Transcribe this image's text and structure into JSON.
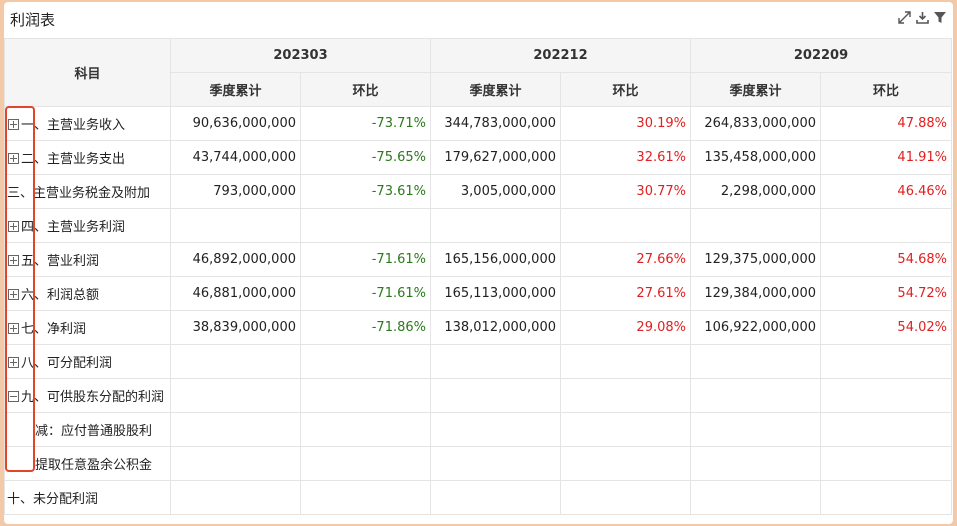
{
  "panel": {
    "title": "利润表",
    "icons": [
      "expand-icon",
      "download-icon",
      "filter-icon"
    ]
  },
  "table": {
    "subject_header": "科目",
    "periods": [
      "202303",
      "202212",
      "202209"
    ],
    "sub_headers": [
      "季度累计",
      "环比"
    ],
    "rows": [
      {
        "label": "一、主营业务收入",
        "toggle": "plus",
        "cells": [
          {
            "value": "90,636,000,000",
            "change": "-73.71%",
            "dir": "neg"
          },
          {
            "value": "344,783,000,000",
            "change": "30.19%",
            "dir": "pos"
          },
          {
            "value": "264,833,000,000",
            "change": "47.88%",
            "dir": "pos"
          }
        ]
      },
      {
        "label": "二、主营业务支出",
        "toggle": "plus",
        "cells": [
          {
            "value": "43,744,000,000",
            "change": "-75.65%",
            "dir": "neg"
          },
          {
            "value": "179,627,000,000",
            "change": "32.61%",
            "dir": "pos"
          },
          {
            "value": "135,458,000,000",
            "change": "41.91%",
            "dir": "pos"
          }
        ]
      },
      {
        "label": "三、主营业务税金及附加",
        "toggle": "none",
        "cells": [
          {
            "value": "793,000,000",
            "change": "-73.61%",
            "dir": "neg"
          },
          {
            "value": "3,005,000,000",
            "change": "30.77%",
            "dir": "pos"
          },
          {
            "value": "2,298,000,000",
            "change": "46.46%",
            "dir": "pos"
          }
        ]
      },
      {
        "label": "四、主营业务利润",
        "toggle": "plus",
        "cells": [
          {
            "value": "",
            "change": "",
            "dir": ""
          },
          {
            "value": "",
            "change": "",
            "dir": ""
          },
          {
            "value": "",
            "change": "",
            "dir": ""
          }
        ]
      },
      {
        "label": "五、营业利润",
        "toggle": "plus",
        "cells": [
          {
            "value": "46,892,000,000",
            "change": "-71.61%",
            "dir": "neg"
          },
          {
            "value": "165,156,000,000",
            "change": "27.66%",
            "dir": "pos"
          },
          {
            "value": "129,375,000,000",
            "change": "54.68%",
            "dir": "pos"
          }
        ]
      },
      {
        "label": "六、利润总额",
        "toggle": "plus",
        "cells": [
          {
            "value": "46,881,000,000",
            "change": "-71.61%",
            "dir": "neg"
          },
          {
            "value": "165,113,000,000",
            "change": "27.61%",
            "dir": "pos"
          },
          {
            "value": "129,384,000,000",
            "change": "54.72%",
            "dir": "pos"
          }
        ]
      },
      {
        "label": "七、净利润",
        "toggle": "plus",
        "cells": [
          {
            "value": "38,839,000,000",
            "change": "-71.86%",
            "dir": "neg"
          },
          {
            "value": "138,012,000,000",
            "change": "29.08%",
            "dir": "pos"
          },
          {
            "value": "106,922,000,000",
            "change": "54.02%",
            "dir": "pos"
          }
        ]
      },
      {
        "label": "八、可分配利润",
        "toggle": "plus",
        "cells": [
          {
            "value": "",
            "change": "",
            "dir": ""
          },
          {
            "value": "",
            "change": "",
            "dir": ""
          },
          {
            "value": "",
            "change": "",
            "dir": ""
          }
        ]
      },
      {
        "label": "九、可供股东分配的利润",
        "toggle": "minus",
        "cells": [
          {
            "value": "",
            "change": "",
            "dir": ""
          },
          {
            "value": "",
            "change": "",
            "dir": ""
          },
          {
            "value": "",
            "change": "",
            "dir": ""
          }
        ]
      },
      {
        "label": "减：应付普通股股利",
        "toggle": "indent",
        "cells": [
          {
            "value": "",
            "change": "",
            "dir": ""
          },
          {
            "value": "",
            "change": "",
            "dir": ""
          },
          {
            "value": "",
            "change": "",
            "dir": ""
          }
        ]
      },
      {
        "label": "提取任意盈余公积金",
        "toggle": "indent",
        "cells": [
          {
            "value": "",
            "change": "",
            "dir": ""
          },
          {
            "value": "",
            "change": "",
            "dir": ""
          },
          {
            "value": "",
            "change": "",
            "dir": ""
          }
        ]
      },
      {
        "label": "十、未分配利润",
        "toggle": "none",
        "cells": [
          {
            "value": "",
            "change": "",
            "dir": ""
          },
          {
            "value": "",
            "change": "",
            "dir": ""
          },
          {
            "value": "",
            "change": "",
            "dir": ""
          }
        ]
      }
    ]
  },
  "colors": {
    "positive": "#e02020",
    "negative": "#2a7a1a",
    "highlight": "#e3452b"
  }
}
